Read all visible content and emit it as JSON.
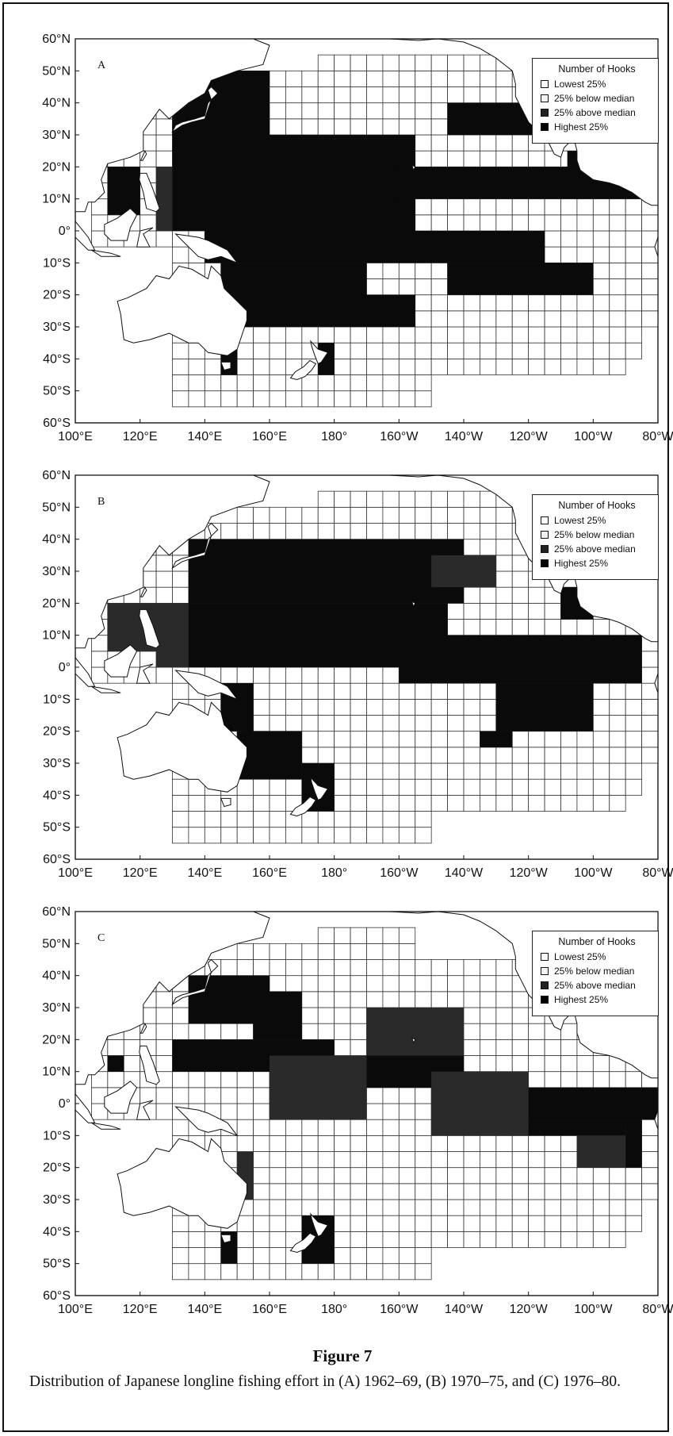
{
  "figure": {
    "title": "Figure 7",
    "caption": "Distribution of Japanese longline fishing effort in (A) 1962–69, (B) 1970–75, and (C) 1976–80."
  },
  "axes": {
    "y_labels": [
      "60°N",
      "50°N",
      "40°N",
      "30°N",
      "20°N",
      "10°N",
      "0°",
      "10°S",
      "20°S",
      "30°S",
      "40°S",
      "50°S",
      "60°S"
    ],
    "x_labels": [
      "100°E",
      "120°E",
      "140°E",
      "160°E",
      "180°",
      "160°W",
      "140°W",
      "120°W",
      "100°W",
      "80°W"
    ]
  },
  "legend": {
    "title": "Number of Hooks",
    "items": [
      {
        "label": "Lowest 25%",
        "color": "#ffffff"
      },
      {
        "label": "25% below median",
        "color": "#f4f4f4"
      },
      {
        "label": "25% above median",
        "color": "#2a2a2a"
      },
      {
        "label": "Highest 25%",
        "color": "#0a0a0a"
      }
    ]
  },
  "panels": [
    {
      "letter": "A",
      "period": "1962–69"
    },
    {
      "letter": "B",
      "period": "1970–75"
    },
    {
      "letter": "C",
      "period": "1976–80"
    }
  ],
  "colors": {
    "land": "#ffffff",
    "ink": "#111111",
    "high": "#0a0a0a",
    "mid_high": "#2a2a2a",
    "grid": "#333333"
  }
}
